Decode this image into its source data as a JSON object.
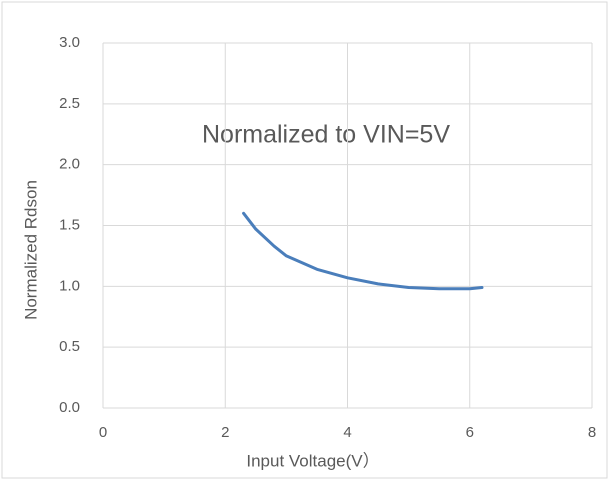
{
  "chart_data": {
    "type": "line",
    "annotations": [
      "Normalized to VIN=5V"
    ],
    "xlabel": "Input Voltage(V）",
    "ylabel": "Normalized  Rdson",
    "x": [
      2.3,
      2.5,
      2.8,
      3.0,
      3.5,
      4.0,
      4.5,
      5.0,
      5.5,
      6.0,
      6.2
    ],
    "series": [
      {
        "color": "#4a7ebb",
        "values": [
          1.6,
          1.47,
          1.33,
          1.25,
          1.14,
          1.07,
          1.02,
          0.99,
          0.98,
          0.98,
          0.99
        ]
      }
    ],
    "xlim": [
      0,
      8
    ],
    "xticks": [
      0,
      2,
      4,
      6,
      8
    ],
    "ylim": [
      0,
      3
    ],
    "yticks": [
      {
        "value": 0,
        "label": "0.0"
      },
      0.5,
      {
        "value": 1,
        "label": "1.0"
      },
      1.5,
      {
        "value": 2,
        "label": "2.0"
      },
      2.5,
      {
        "value": 3,
        "label": "3.0"
      }
    ],
    "grid": true
  }
}
